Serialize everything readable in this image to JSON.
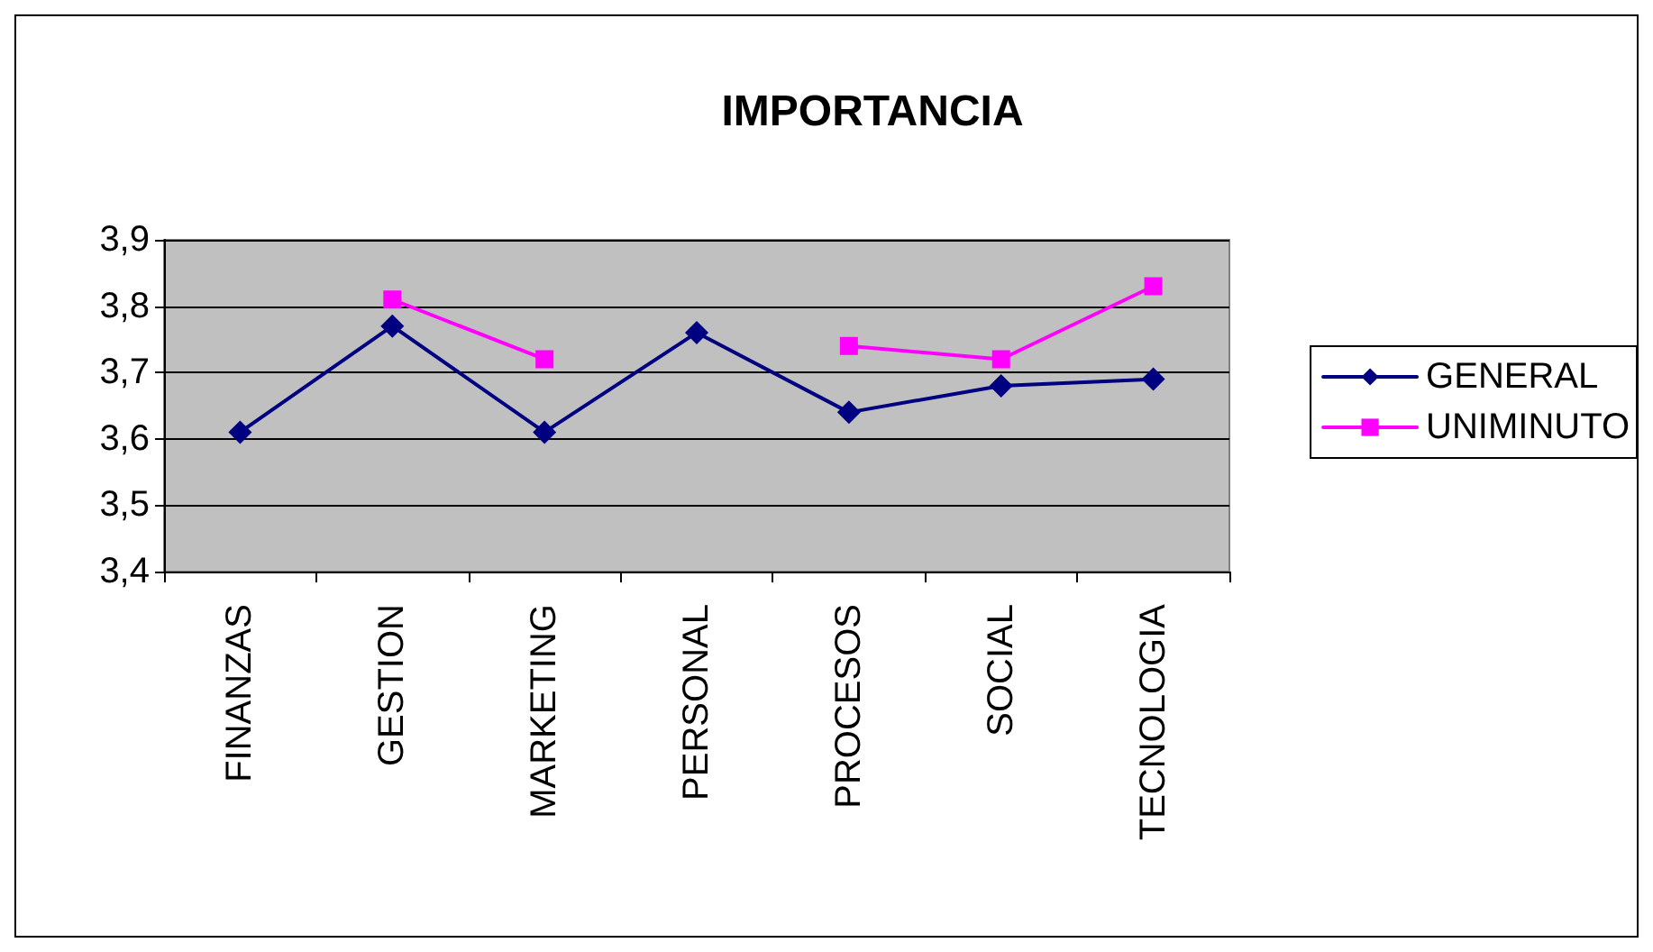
{
  "chart_data": {
    "type": "line",
    "title": "IMPORTANCIA",
    "categories": [
      "FINANZAS",
      "GESTION",
      "MARKETING",
      "PERSONAL",
      "PROCESOS",
      "SOCIAL",
      "TECNOLOGIA"
    ],
    "series": [
      {
        "name": "GENERAL",
        "color": "#000080",
        "marker": "diamond",
        "values": [
          3.61,
          3.77,
          3.61,
          3.76,
          3.64,
          3.68,
          3.69
        ]
      },
      {
        "name": "UNIMINUTO",
        "color": "#ff00ff",
        "marker": "square",
        "values": [
          null,
          3.81,
          3.72,
          null,
          3.74,
          3.72,
          3.83
        ]
      }
    ],
    "ylim": [
      3.4,
      3.9
    ],
    "yticks": [
      {
        "value": 3.4,
        "label": "3,4"
      },
      {
        "value": 3.5,
        "label": "3,5"
      },
      {
        "value": 3.6,
        "label": "3,6"
      },
      {
        "value": 3.7,
        "label": "3,7"
      },
      {
        "value": 3.8,
        "label": "3,8"
      },
      {
        "value": 3.9,
        "label": "3,9"
      }
    ],
    "grid": "y",
    "legend": "right",
    "line_style": "solid"
  }
}
